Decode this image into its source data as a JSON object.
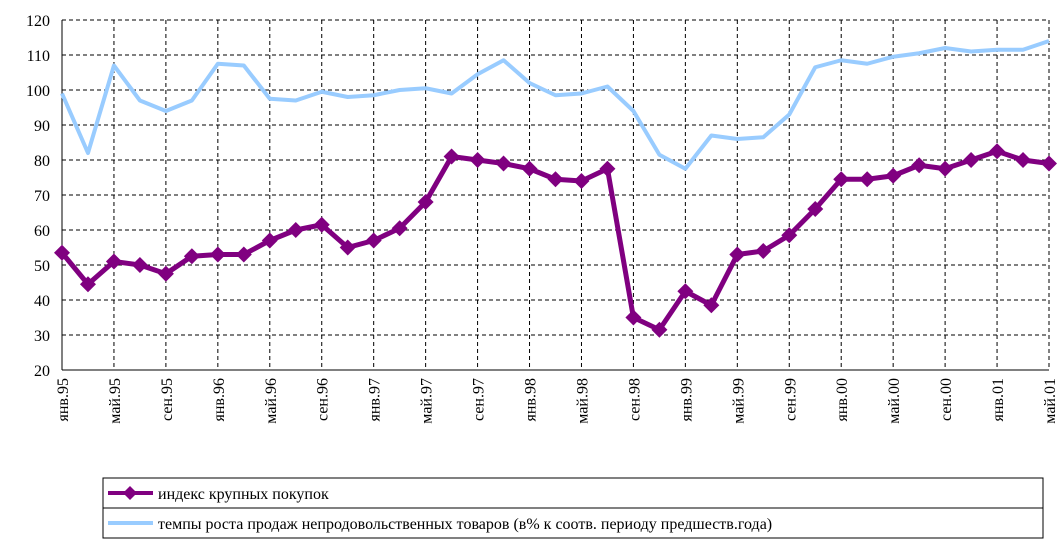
{
  "chart_data": {
    "type": "line",
    "categories": [
      "янв.95",
      null,
      "май.95",
      null,
      "сен.95",
      null,
      "янв.96",
      null,
      "май.96",
      null,
      "сен.96",
      null,
      "янв.97",
      null,
      "май.97",
      null,
      "сен.97",
      null,
      "янв.98",
      null,
      "май.98",
      null,
      "сен.98",
      null,
      "янв.99",
      null,
      "май.99",
      null,
      "сен.99",
      null,
      "янв.00",
      null,
      "май.00",
      null,
      "сен.00",
      null,
      "янв.01",
      null,
      "май.01"
    ],
    "series": [
      {
        "name": "индекс крупных покупок",
        "color": "#800080",
        "marker": "diamond",
        "values": [
          53.5,
          44.5,
          51,
          50,
          47.5,
          52.5,
          53,
          53,
          57,
          60,
          61.5,
          55,
          57,
          60.5,
          68,
          81,
          80,
          79,
          77.5,
          74.5,
          74,
          77.5,
          35,
          31.5,
          42.5,
          38.5,
          53,
          54,
          58.5,
          66,
          74.5,
          74.5,
          75.5,
          78.5,
          77.5,
          80,
          82.5,
          80,
          79
        ]
      },
      {
        "name": "темпы роста продаж непродовольственных товаров (в% к соотв. периоду предшеств.года)",
        "color": "#99ccff",
        "marker": "none",
        "values": [
          99,
          82,
          107,
          97,
          94,
          97,
          107.5,
          107,
          97.5,
          97,
          99.5,
          98,
          98.5,
          100,
          100.5,
          99,
          104.5,
          108.5,
          102,
          98.5,
          99,
          101,
          94,
          81.5,
          77.5,
          87,
          86,
          86.5,
          93,
          106.5,
          108.5,
          107.5,
          109.5,
          110.5,
          112,
          111,
          111.5,
          111.5,
          114
        ]
      }
    ],
    "ylim": [
      20,
      120
    ],
    "yticks": [
      20,
      30,
      40,
      50,
      60,
      70,
      80,
      90,
      100,
      110,
      120
    ],
    "grid": true,
    "legend": "bottom"
  }
}
